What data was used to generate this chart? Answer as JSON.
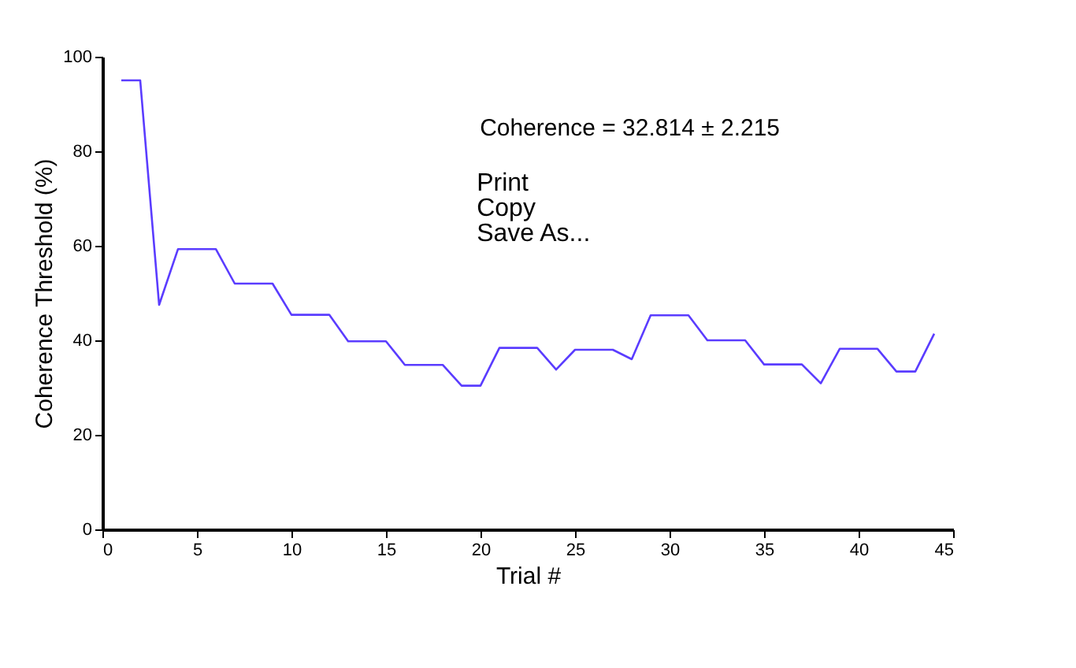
{
  "chart_data": {
    "type": "line",
    "xlabel": "Trial #",
    "ylabel": "Coherence Threshold (%)",
    "x": [
      1,
      2,
      3,
      4,
      5,
      6,
      7,
      8,
      9,
      10,
      11,
      12,
      13,
      14,
      15,
      16,
      17,
      18,
      19,
      20,
      21,
      22,
      23,
      24,
      25,
      26,
      27,
      28,
      29,
      30,
      31,
      32,
      33,
      34,
      35,
      36,
      37,
      38,
      39,
      40,
      41,
      42,
      43,
      44
    ],
    "series": [
      {
        "color": "#5a3cff",
        "values": [
          95,
          95,
          47.5,
          59.3,
          59.3,
          59.3,
          52,
          52,
          52,
          45.4,
          45.4,
          45.4,
          39.8,
          39.8,
          39.8,
          34.8,
          34.8,
          34.8,
          30.4,
          30.4,
          38.4,
          38.4,
          38.4,
          33.8,
          38,
          38,
          38,
          36,
          45.3,
          45.3,
          45.3,
          40,
          40,
          40,
          34.9,
          34.9,
          34.9,
          30.9,
          38.2,
          38.2,
          38.2,
          33.4,
          33.4,
          41.4
        ]
      }
    ],
    "xlim": [
      0,
      45
    ],
    "xticks": [
      0,
      5,
      10,
      15,
      20,
      25,
      30,
      35,
      40,
      45
    ],
    "ylim": [
      0,
      100
    ],
    "yticks": [
      0,
      20,
      40,
      60,
      80,
      100
    ],
    "grid": false,
    "legend": false,
    "marker": "none",
    "line_style": "solid",
    "annotations": [
      "Coherence = 32.814 ± 2.215",
      "Print",
      "Copy",
      "Save As..."
    ]
  }
}
